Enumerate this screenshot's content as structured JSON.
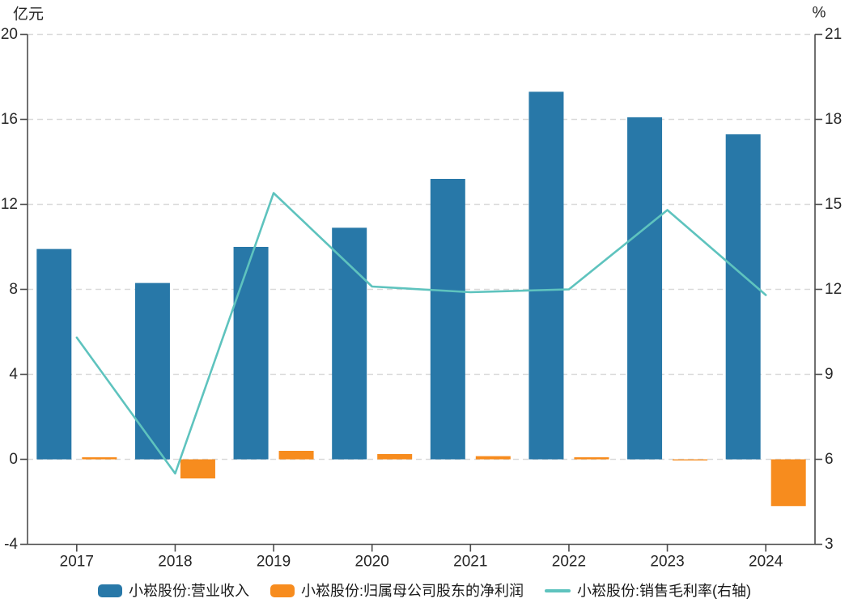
{
  "chart": {
    "unit_left": "亿元",
    "unit_right": "%",
    "x_labels": [
      "2017",
      "2018",
      "2019",
      "2020",
      "2021",
      "2022",
      "2023",
      "2024"
    ],
    "left_ticks": [
      20,
      16,
      12,
      8,
      4,
      0,
      -4
    ],
    "right_ticks": [
      21,
      18,
      15,
      12,
      9,
      6,
      3
    ]
  },
  "chart_data": {
    "type": "bar",
    "categories": [
      "2017",
      "2018",
      "2019",
      "2020",
      "2021",
      "2022",
      "2023",
      "2024"
    ],
    "series": [
      {
        "name": "小崧股份:营业收入",
        "kind": "bar",
        "axis": "left",
        "unit": "亿元",
        "color": "#2878a8",
        "values": [
          9.9,
          8.3,
          10.0,
          10.9,
          13.2,
          17.3,
          16.1,
          15.3
        ]
      },
      {
        "name": "小崧股份:归属母公司股东的净利润",
        "kind": "bar",
        "axis": "left",
        "unit": "亿元",
        "color": "#f78c1e",
        "values": [
          0.1,
          -0.9,
          0.4,
          0.25,
          0.15,
          0.1,
          -0.05,
          -2.2
        ]
      },
      {
        "name": "小崧股份:销售毛利率(右轴)",
        "kind": "line",
        "axis": "right",
        "unit": "%",
        "color": "#5ec3be",
        "values": [
          10.3,
          5.5,
          15.4,
          12.1,
          11.9,
          12.0,
          14.8,
          11.8
        ]
      }
    ],
    "ylim_left": [
      -4,
      20
    ],
    "ylim_right": [
      3,
      21
    ],
    "grid": true,
    "legend_position": "bottom"
  },
  "colors": {
    "axis": "#4d4d4d",
    "grid": "#d9d9d9",
    "tick_text": "#262626"
  }
}
